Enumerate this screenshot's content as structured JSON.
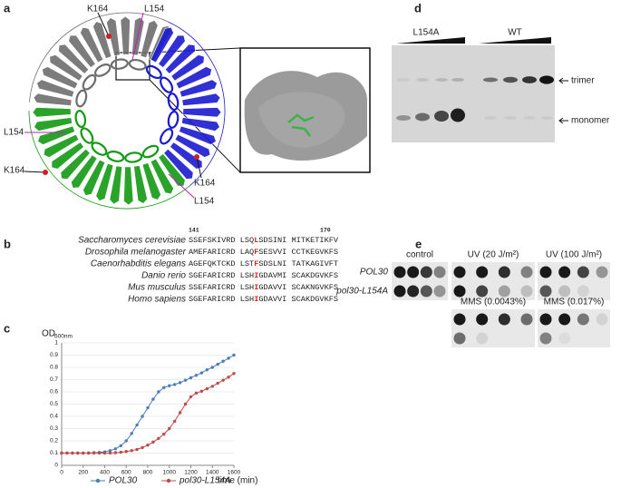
{
  "panel_labels": [
    "a",
    "b",
    "c",
    "d",
    "e"
  ],
  "panel_a": {
    "residue_labels": [
      "K164",
      "L154",
      "L154",
      "K164",
      "K164",
      "L154"
    ]
  },
  "panel_b": {
    "start": "141",
    "end": "170",
    "rows": [
      {
        "species": "Saccharomyces cerevisiae",
        "pre": "SSEFSKIVRD LSQ",
        "mark": "L",
        "post": "SDSINI MITKETIKFV"
      },
      {
        "species": "Drosophila melanogaster",
        "pre": "AMEFARICRD LAQ",
        "mark": "F",
        "post": "SESVVI CCTKEGVKFS"
      },
      {
        "species": "Caenorhabditis elegans",
        "pre": "AGEFQKTCKD LST",
        "mark": "F",
        "post": "SDSLNI TATKAGIVFT"
      },
      {
        "species": "Danio rerio",
        "pre": "SGEFARICRD LSH",
        "mark": "I",
        "post": "GDAVMI SCAKDGVKFS"
      },
      {
        "species": "Mus musculus",
        "pre": "SSEFARICRD LSH",
        "mark": "I",
        "post": "GDAVVI SCAKNGVKFS"
      },
      {
        "species": "Homo sapiens",
        "pre": "SGEFARICRD LSH",
        "mark": "I",
        "post": "GDAVVI SCAKDGVKFS"
      }
    ]
  },
  "panel_d": {
    "lanes": [
      "L154A",
      "WT"
    ],
    "bands": [
      "trimer",
      "monomer"
    ]
  },
  "panel_e": {
    "conditions": [
      "control",
      "UV (20 J/m²)",
      "UV (100 J/m²)",
      "MMS (0.0043%)",
      "MMS (0.017%)"
    ],
    "strains": [
      "POL30",
      "pol30-L154A"
    ]
  },
  "chart_data": {
    "type": "line",
    "y_label": "OD",
    "y_label_sub": "600nm",
    "x_label": "time (min)",
    "x": [
      0,
      50,
      100,
      150,
      200,
      250,
      300,
      350,
      400,
      450,
      500,
      550,
      600,
      650,
      700,
      750,
      800,
      850,
      900,
      950,
      1000,
      1050,
      1100,
      1150,
      1200,
      1250,
      1300,
      1350,
      1400,
      1450,
      1500,
      1550,
      1600
    ],
    "series": [
      {
        "name": "POL30",
        "color": "#4a7ebb",
        "values": [
          0.1,
          0.1,
          0.1,
          0.1,
          0.1,
          0.101,
          0.103,
          0.106,
          0.11,
          0.12,
          0.135,
          0.16,
          0.2,
          0.26,
          0.33,
          0.4,
          0.47,
          0.54,
          0.6,
          0.635,
          0.65,
          0.66,
          0.675,
          0.695,
          0.715,
          0.735,
          0.755,
          0.78,
          0.8,
          0.825,
          0.85,
          0.875,
          0.9
        ]
      },
      {
        "name": "pol30-L154A",
        "color": "#be4b48",
        "values": [
          0.1,
          0.1,
          0.1,
          0.1,
          0.1,
          0.1,
          0.1,
          0.1,
          0.1,
          0.101,
          0.103,
          0.107,
          0.113,
          0.12,
          0.13,
          0.145,
          0.165,
          0.19,
          0.22,
          0.255,
          0.3,
          0.36,
          0.43,
          0.5,
          0.56,
          0.59,
          0.605,
          0.625,
          0.645,
          0.67,
          0.695,
          0.72,
          0.75
        ]
      }
    ],
    "xlim": [
      0,
      1600
    ],
    "xticks": [
      0,
      200,
      400,
      600,
      800,
      1000,
      1200,
      1400,
      1600
    ],
    "ylim": [
      0,
      1
    ],
    "yticks": [
      0,
      0.1,
      0.2,
      0.3,
      0.4,
      0.5,
      0.6,
      0.7,
      0.8,
      0.9,
      1
    ],
    "grid": true
  }
}
